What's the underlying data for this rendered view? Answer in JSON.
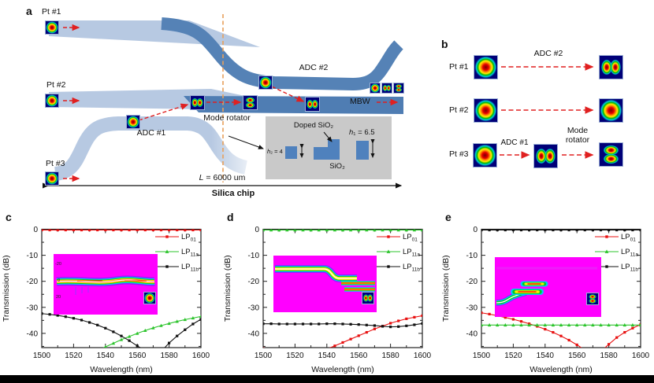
{
  "colors": {
    "light_band": "#b7c9e2",
    "dark_band": "#5582b6",
    "mbw_band": "#4f7db3",
    "inset_gray": "#c9c9c9",
    "inset_blue": "#4f81bd",
    "orange_dash": "#e8a05b",
    "red_arrow": "#e02020",
    "lp01": "#e81010",
    "lp11a": "#2cc42c",
    "lp11b": "#111111",
    "inset_magenta": "#ff00ff"
  },
  "panel_a": {
    "label": "a",
    "pt1": "Pt #1",
    "pt2": "Pt #2",
    "pt3": "Pt #3",
    "adc1": "ADC #1",
    "adc2": "ADC #2",
    "mode_rotator": "Mode rotator",
    "mbw": "MBW",
    "length_label": "L = 6000 um",
    "chip_label": "Silica chip",
    "inset": {
      "doped": "Doped SiO₂",
      "h1": "h₁ = 6.5",
      "h2": "h₂ = 4",
      "sio2": "SiO₂"
    }
  },
  "panel_b": {
    "label": "b",
    "rows": [
      {
        "port": "Pt #1",
        "input": "lp01",
        "arrow1_label": "ADC #2",
        "output": "lp11a"
      },
      {
        "port": "Pt #2",
        "input": "lp01",
        "arrow1_label": "",
        "output": "lp01"
      },
      {
        "port": "Pt #3",
        "input": "lp01",
        "arrow1_label": "ADC #1",
        "mid": "lp11a",
        "arrow2_label": "Mode rotator",
        "output": "lp11b"
      }
    ]
  },
  "charts": [
    {
      "label": "c",
      "type": "line",
      "xlabel": "Wavelength (nm)",
      "ylabel": "Transmission (dB)",
      "xlim": [
        1500,
        1600
      ],
      "ylim": [
        -45.5,
        0
      ],
      "xticks": [
        1500,
        1520,
        1540,
        1560,
        1580,
        1600
      ],
      "yticks": [
        0,
        -10,
        -20,
        -30,
        -40
      ],
      "x_start": 1500,
      "x_step": 5,
      "series": [
        {
          "base": "LP",
          "sub": "01",
          "color": "#e81010",
          "marker": "square",
          "values": [
            -0.3,
            -0.3,
            -0.3,
            -0.3,
            -0.3,
            -0.3,
            -0.3,
            -0.3,
            -0.3,
            -0.3,
            -0.3,
            -0.3,
            -0.3,
            -0.3,
            -0.3,
            -0.3,
            -0.3,
            -0.3,
            -0.3,
            -0.3,
            -0.3
          ]
        },
        {
          "base": "LP",
          "sub": "11a",
          "color": "#2cc42c",
          "marker": "triangle",
          "values": [
            -48,
            -48,
            -48,
            -48,
            -48,
            -48,
            -47.5,
            -46.5,
            -45.2,
            -43.8,
            -42.4,
            -41.2,
            -40,
            -38.9,
            -37.9,
            -37,
            -36.2,
            -35.4,
            -34.7,
            -34.1,
            -33.5
          ]
        },
        {
          "base": "LP",
          "sub": "11b",
          "color": "#111111",
          "marker": "square",
          "values": [
            -32.4,
            -32.7,
            -33.1,
            -33.6,
            -34.2,
            -34.9,
            -35.8,
            -36.8,
            -38,
            -39.4,
            -41,
            -42.8,
            -44.8,
            -46.6,
            -47.6,
            -47,
            -43.7,
            -41,
            -38.6,
            -36.4,
            -34.6
          ]
        }
      ],
      "inset": {
        "mode": "lp01",
        "tick_labels": [
          "-20",
          "0",
          "20"
        ]
      }
    },
    {
      "label": "d",
      "type": "line",
      "xlabel": "Wavelength (nm)",
      "ylabel": "Transmission (dB)",
      "xlim": [
        1500,
        1600
      ],
      "ylim": [
        -45.5,
        0
      ],
      "xticks": [
        1500,
        1520,
        1540,
        1560,
        1580,
        1600
      ],
      "yticks": [
        0,
        -10,
        -20,
        -30,
        -40
      ],
      "x_start": 1500,
      "x_step": 5,
      "series": [
        {
          "base": "LP",
          "sub": "01",
          "color": "#e81010",
          "marker": "square",
          "values": [
            -45.8,
            -46,
            -46.5,
            -47.2,
            -47.8,
            -48,
            -47.8,
            -47,
            -46,
            -44.8,
            -43.5,
            -42.2,
            -40.9,
            -39.6,
            -38.3,
            -37.2,
            -36.1,
            -35.2,
            -34.4,
            -33.8,
            -33.2
          ]
        },
        {
          "base": "LP",
          "sub": "11a",
          "color": "#2cc42c",
          "marker": "triangle",
          "values": [
            -0.3,
            -0.3,
            -0.3,
            -0.3,
            -0.3,
            -0.3,
            -0.3,
            -0.3,
            -0.3,
            -0.3,
            -0.3,
            -0.3,
            -0.3,
            -0.3,
            -0.3,
            -0.3,
            -0.3,
            -0.3,
            -0.3,
            -0.3,
            -0.3
          ]
        },
        {
          "base": "LP",
          "sub": "11b",
          "color": "#111111",
          "marker": "square",
          "values": [
            -36.3,
            -36.3,
            -36.4,
            -36.4,
            -36.4,
            -36.4,
            -36.4,
            -36.4,
            -36.3,
            -36.3,
            -36.4,
            -36.5,
            -36.6,
            -36.8,
            -37,
            -37.3,
            -37.5,
            -37.4,
            -37.1,
            -36.7,
            -36.2
          ]
        }
      ],
      "inset": {
        "mode": "lp11a",
        "tick_labels": []
      }
    },
    {
      "label": "e",
      "type": "line",
      "xlabel": "Wavelength (nm)",
      "ylabel": "Transmission (dB)",
      "xlim": [
        1500,
        1600
      ],
      "ylim": [
        -45.5,
        0
      ],
      "xticks": [
        1500,
        1520,
        1540,
        1560,
        1580,
        1600
      ],
      "yticks": [
        0,
        -10,
        -20,
        -30,
        -40
      ],
      "x_start": 1500,
      "x_step": 5,
      "series": [
        {
          "base": "LP",
          "sub": "01",
          "color": "#e81010",
          "marker": "square",
          "values": [
            -32.1,
            -32.6,
            -33.2,
            -33.9,
            -34.6,
            -35.4,
            -36.3,
            -37.3,
            -38.4,
            -39.6,
            -41,
            -42.6,
            -44.4,
            -46.4,
            -48,
            -47,
            -44.2,
            -41.6,
            -39.6,
            -38,
            -36.6
          ]
        },
        {
          "base": "LP",
          "sub": "11a",
          "color": "#2cc42c",
          "marker": "triangle",
          "values": [
            -36.8,
            -36.8,
            -36.8,
            -36.8,
            -36.8,
            -36.8,
            -36.8,
            -36.8,
            -36.8,
            -36.8,
            -36.8,
            -36.8,
            -36.8,
            -36.8,
            -36.8,
            -36.8,
            -36.8,
            -36.8,
            -36.8,
            -36.8,
            -36.8
          ]
        },
        {
          "base": "LP",
          "sub": "11b",
          "color": "#111111",
          "marker": "square",
          "values": [
            -0.3,
            -0.3,
            -0.3,
            -0.3,
            -0.3,
            -0.3,
            -0.3,
            -0.3,
            -0.3,
            -0.3,
            -0.3,
            -0.3,
            -0.3,
            -0.3,
            -0.3,
            -0.3,
            -0.3,
            -0.3,
            -0.3,
            -0.3,
            -0.3
          ]
        }
      ],
      "inset": {
        "mode": "lp11b",
        "tick_labels": []
      }
    }
  ]
}
